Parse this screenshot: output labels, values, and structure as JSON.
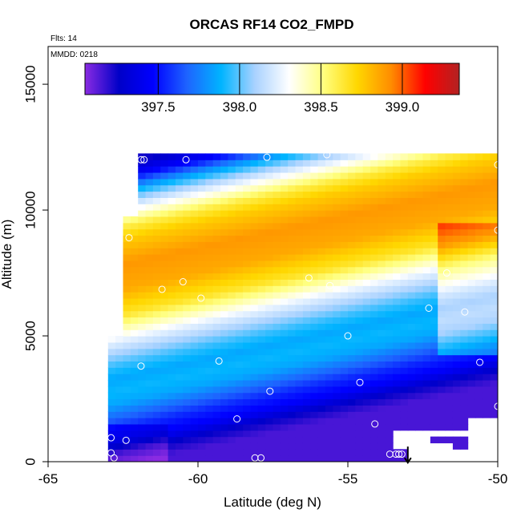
{
  "chart_data": {
    "type": "heatmap",
    "title": "ORCAS RF14 CO2_FMPD",
    "notes": {
      "flights": "Flts: 14",
      "date": "MMDD: 0218"
    },
    "xlabel": "Latitude (deg N)",
    "ylabel": "Altitude (m)",
    "xlim": [
      -65,
      -50
    ],
    "ylim": [
      0,
      16500
    ],
    "x_ticks": [
      -65,
      -60,
      -55,
      -50
    ],
    "x_tick_labels": [
      "-65",
      "-60",
      "-55",
      "-50"
    ],
    "y_ticks": [
      0,
      5000,
      10000,
      15000
    ],
    "y_tick_labels": [
      "0",
      "5000",
      "10000",
      "15000"
    ],
    "colorbar": {
      "range": [
        397.05,
        399.35
      ],
      "ticks": [
        397.5,
        398.0,
        398.5,
        399.0
      ],
      "tick_labels": [
        "397.5",
        "398.0",
        "398.5",
        "399.0"
      ],
      "colors": [
        "#8a2be2",
        "#0000c8",
        "#0000ff",
        "#1e64ff",
        "#00b4ff",
        "#aad2ff",
        "#ffffff",
        "#ffff80",
        "#ffd700",
        "#ff8c00",
        "#ff0000",
        "#b22222"
      ]
    },
    "field": {
      "x_range": [
        -63,
        -50
      ],
      "y_range": [
        0,
        12500
      ],
      "profile": [
        [
          0,
          397.15
        ],
        [
          500,
          397.25
        ],
        [
          1000,
          397.45
        ],
        [
          1500,
          397.55
        ],
        [
          2000,
          397.7
        ],
        [
          2500,
          397.85
        ],
        [
          3000,
          397.9
        ],
        [
          3500,
          397.85
        ],
        [
          4000,
          397.95
        ],
        [
          4500,
          398.1
        ],
        [
          5000,
          398.25
        ],
        [
          5500,
          398.45
        ],
        [
          6000,
          398.65
        ],
        [
          7000,
          398.85
        ],
        [
          8000,
          398.9
        ],
        [
          9000,
          398.75
        ],
        [
          9500,
          398.6
        ],
        [
          10000,
          398.35
        ],
        [
          10500,
          398.1
        ],
        [
          11000,
          397.8
        ],
        [
          11500,
          397.45
        ],
        [
          12000,
          397.25
        ],
        [
          12300,
          397.2
        ]
      ]
    },
    "observations": [
      [
        -62.9,
        950
      ],
      [
        -62.9,
        350
      ],
      [
        -62.8,
        150
      ],
      [
        -62.4,
        850
      ],
      [
        -61.9,
        12000
      ],
      [
        -61.8,
        12000
      ],
      [
        -62.3,
        8900
      ],
      [
        -61.9,
        3800
      ],
      [
        -61.2,
        6850
      ],
      [
        -60.5,
        7150
      ],
      [
        -60.4,
        12000
      ],
      [
        -59.9,
        6500
      ],
      [
        -59.3,
        4000
      ],
      [
        -58.7,
        1700
      ],
      [
        -58.1,
        150
      ],
      [
        -57.9,
        150
      ],
      [
        -57.7,
        12100
      ],
      [
        -57.6,
        2800
      ],
      [
        -56.3,
        7300
      ],
      [
        -55.7,
        12200
      ],
      [
        -55.6,
        7000
      ],
      [
        -55.0,
        5000
      ],
      [
        -54.6,
        3150
      ],
      [
        -54.1,
        1500
      ],
      [
        -53.6,
        300
      ],
      [
        -53.4,
        300
      ],
      [
        -53.3,
        300
      ],
      [
        -53.2,
        300
      ],
      [
        -52.3,
        6100
      ],
      [
        -51.7,
        7500
      ],
      [
        -51.1,
        5950
      ],
      [
        -50.6,
        3950
      ],
      [
        -50.0,
        12500
      ],
      [
        -50.0,
        11800
      ],
      [
        -50.0,
        9200
      ],
      [
        -50.0,
        2200
      ]
    ],
    "flight_marker": {
      "x": -53.0,
      "y": 600,
      "direction": "down"
    }
  }
}
